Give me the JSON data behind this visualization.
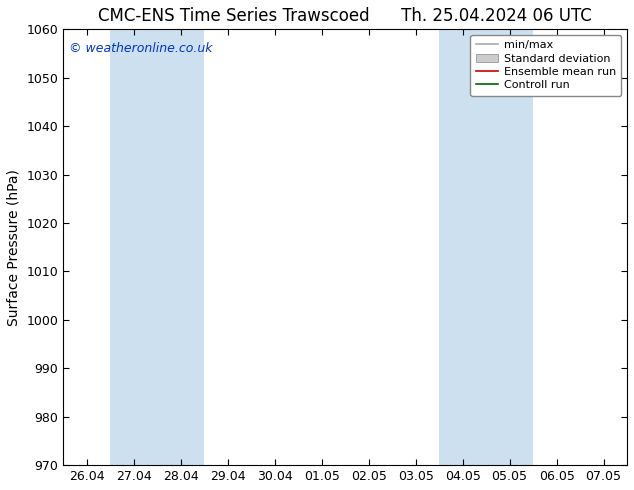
{
  "title_left": "CMC-ENS Time Series Trawscoed",
  "title_right": "Th. 25.04.2024 06 UTC",
  "ylabel": "Surface Pressure (hPa)",
  "ylim": [
    970,
    1060
  ],
  "yticks": [
    970,
    980,
    990,
    1000,
    1010,
    1020,
    1030,
    1040,
    1050,
    1060
  ],
  "x_tick_labels": [
    "26.04",
    "27.04",
    "28.04",
    "29.04",
    "30.04",
    "01.05",
    "02.05",
    "03.05",
    "04.05",
    "05.05",
    "06.05",
    "07.05"
  ],
  "x_tick_positions": [
    0,
    1,
    2,
    3,
    4,
    5,
    6,
    7,
    8,
    9,
    10,
    11
  ],
  "shaded_bands": [
    {
      "xmin": 1,
      "xmax": 3,
      "color": "#cce0f0"
    },
    {
      "xmin": 8,
      "xmax": 10,
      "color": "#cce0f0"
    }
  ],
  "legend_entries": [
    {
      "label": "min/max",
      "color": "#aaaaaa",
      "style": "minmax"
    },
    {
      "label": "Standard deviation",
      "color": "#cccccc",
      "style": "stddev"
    },
    {
      "label": "Ensemble mean run",
      "color": "#cc0000",
      "style": "line"
    },
    {
      "label": "Controll run",
      "color": "#006600",
      "style": "line"
    }
  ],
  "watermark": "© weatheronline.co.uk",
  "watermark_color": "#0033cc",
  "background_color": "#ffffff",
  "plot_background": "#ffffff",
  "title_fontsize": 12,
  "axis_label_fontsize": 10,
  "tick_fontsize": 9,
  "legend_fontsize": 8
}
